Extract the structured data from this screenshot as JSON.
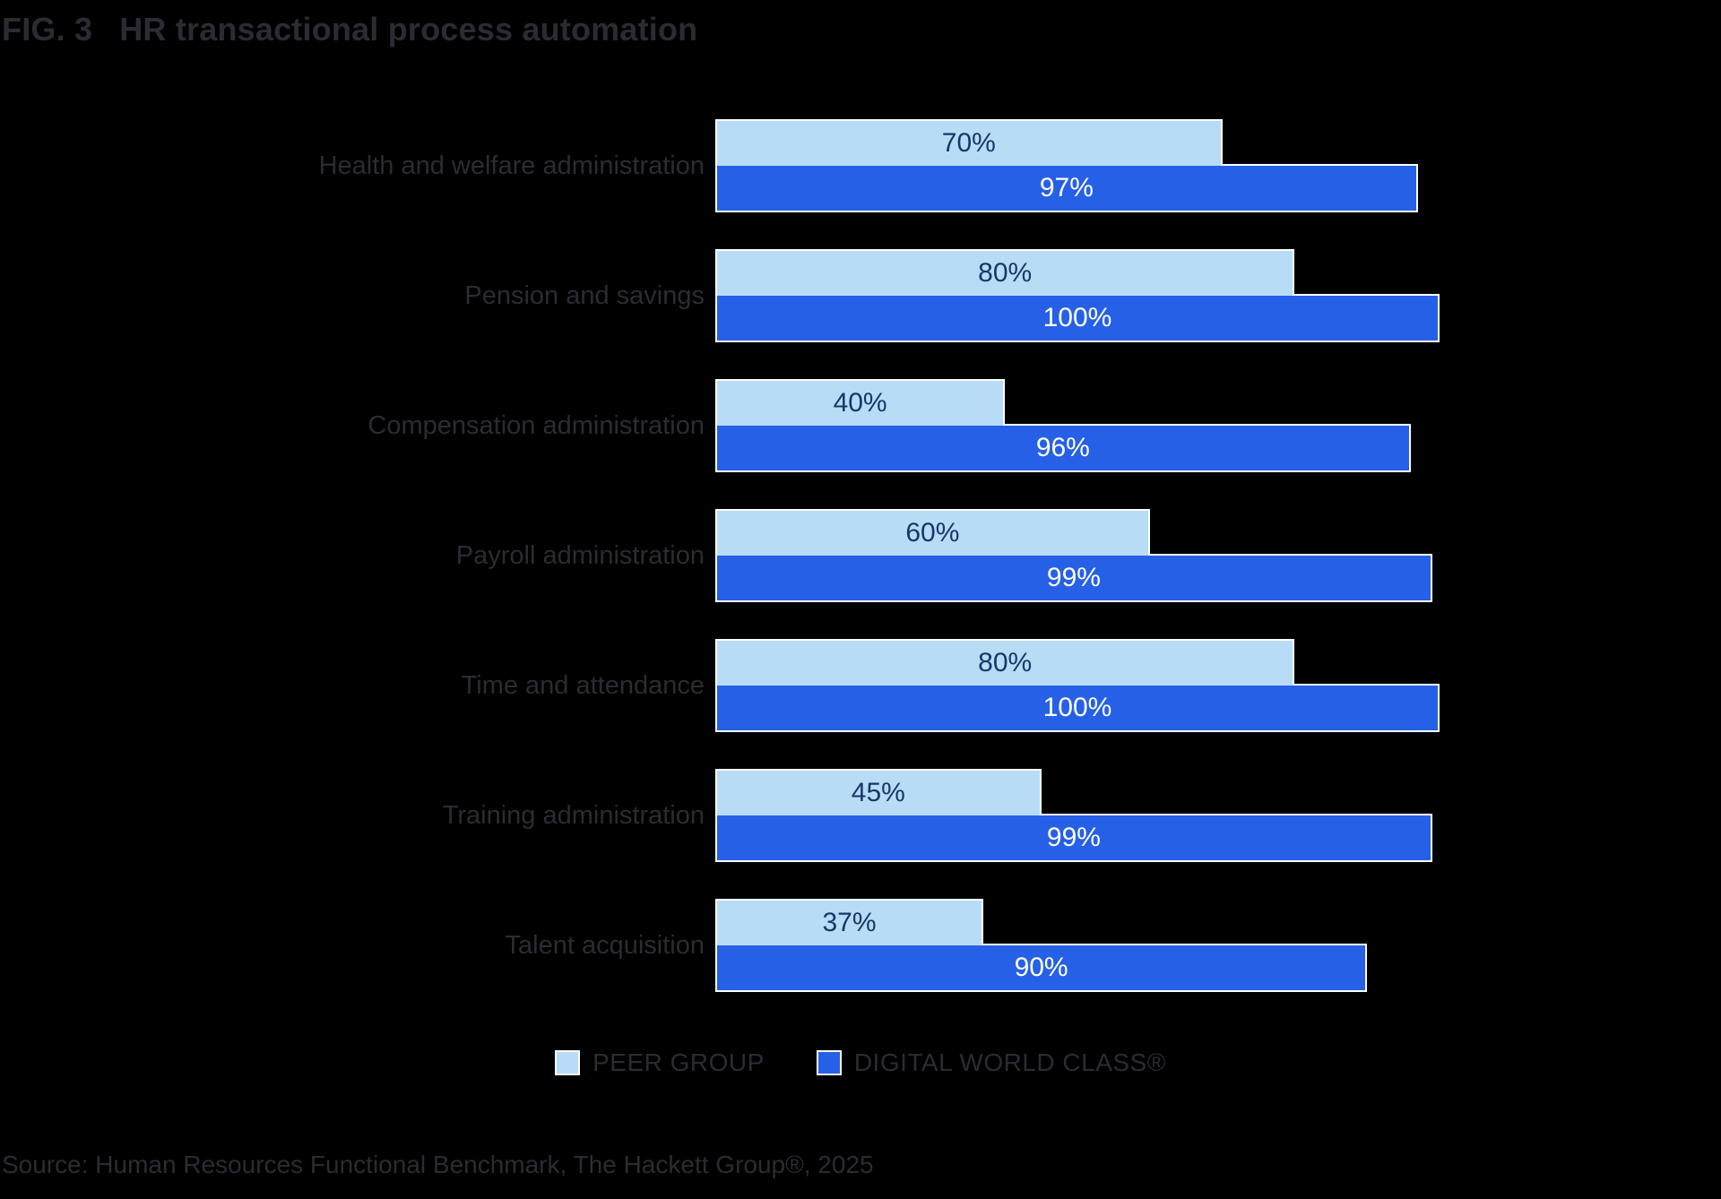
{
  "figure": {
    "fig_label": "FIG. 3",
    "title": "HR transactional process automation"
  },
  "chart_data": {
    "type": "bar",
    "orientation": "horizontal",
    "title": "FIG. 3 HR transactional process automation",
    "categories": [
      "Health and welfare administration",
      "Pension and savings",
      "Compensation administration",
      "Payroll administration",
      "Time and attendance",
      "Training administration",
      "Talent acquisition"
    ],
    "series": [
      {
        "name": "PEER GROUP",
        "values": [
          70,
          80,
          40,
          60,
          80,
          45,
          37
        ],
        "color": "#B9DCF6",
        "value_label_color": "#17376B"
      },
      {
        "name": "DIGITAL WORLD CLASS®",
        "values": [
          97,
          100,
          96,
          99,
          100,
          99,
          90
        ],
        "color": "#2660E6",
        "value_label_color": "#FFFFFF"
      }
    ],
    "value_suffix": "%",
    "xlim": [
      0,
      100
    ],
    "grid": false,
    "axis_ticks": "none",
    "legend_position": "bottom-center",
    "value_labels": "centered-inside-bars"
  },
  "legend": {
    "items": [
      {
        "label": "PEER GROUP",
        "color": "#B9DCF6"
      },
      {
        "label": "DIGITAL WORLD CLASS®",
        "color": "#2660E6"
      }
    ]
  },
  "source": "Source: Human Resources Functional Benchmark, The Hackett Group®, 2025",
  "colors": {
    "background": "#000000",
    "text": "#2B2B33",
    "peer_group_bar": "#B9DCF6",
    "digital_world_class_bar": "#2660E6",
    "value_on_light_bar": "#17376B",
    "value_on_dark_bar": "#FFFFFF",
    "bar_border": "#FFFFFF"
  }
}
